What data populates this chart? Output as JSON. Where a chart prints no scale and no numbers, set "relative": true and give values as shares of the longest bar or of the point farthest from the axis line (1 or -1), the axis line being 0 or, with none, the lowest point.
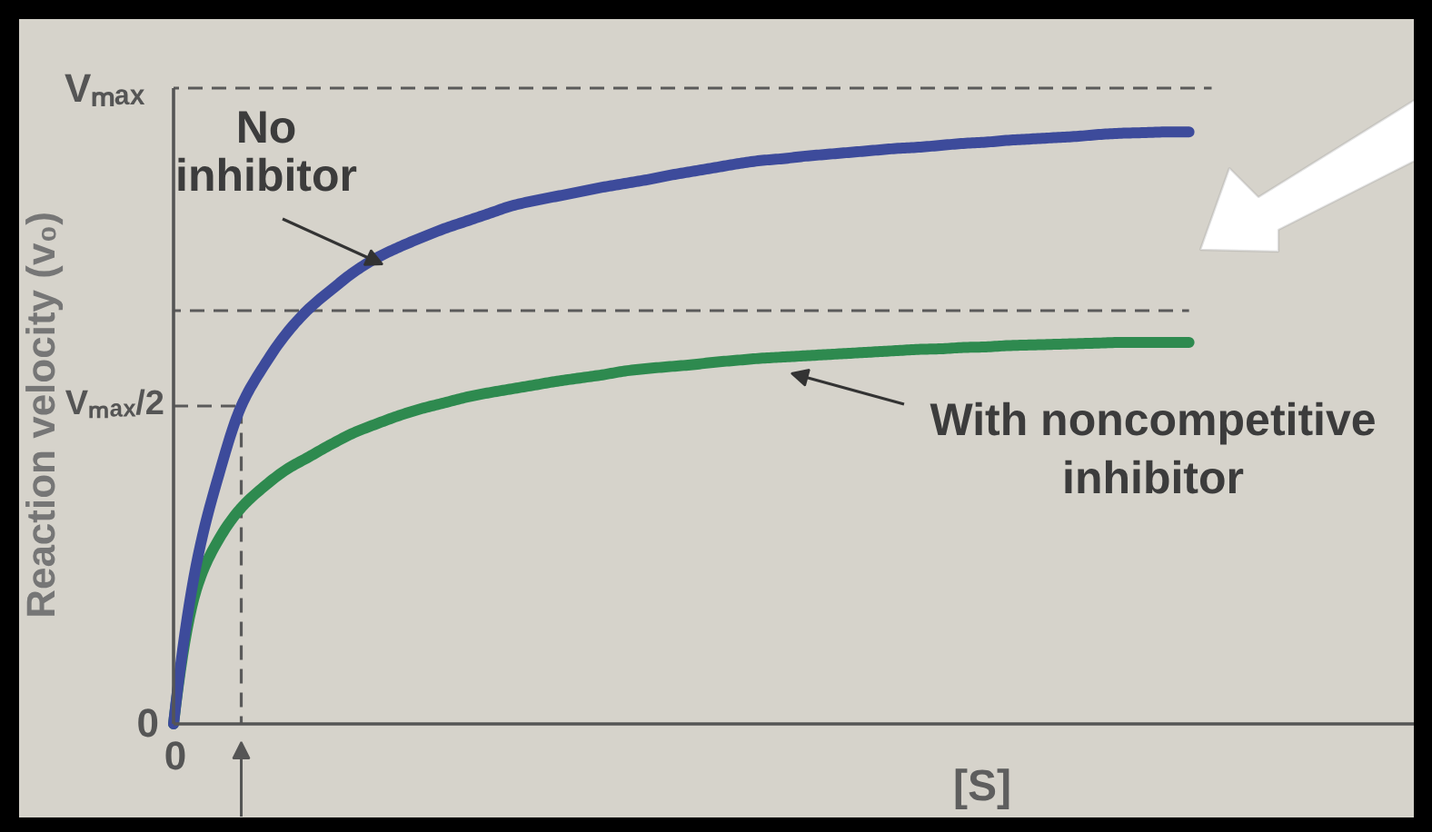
{
  "chart_data": {
    "type": "line",
    "relative": true,
    "ylabel": "Reaction velocity (v₀)",
    "xlabel": "[S]",
    "categories": [
      null,
      null,
      null,
      null,
      null,
      null,
      null,
      null,
      null,
      null,
      null,
      null,
      null,
      null,
      null,
      null,
      null,
      null,
      null,
      null,
      null,
      null,
      null,
      null,
      null,
      null,
      null,
      null,
      null,
      null,
      null,
      null,
      null,
      null,
      null,
      null,
      null,
      null,
      null,
      null,
      null,
      null,
      null,
      null,
      null,
      null,
      null,
      null,
      null,
      null,
      null,
      null,
      null,
      null,
      null,
      null
    ],
    "marker": "none",
    "series": [
      {
        "color": "#5a5a5a",
        "line_style": "dashed",
        "values": [
          1,
          1,
          1,
          1,
          1,
          1,
          1,
          1,
          1,
          1,
          1,
          1,
          1,
          1,
          1,
          1,
          1,
          1,
          1,
          1,
          1,
          1,
          1,
          1,
          1,
          1,
          1,
          1,
          1,
          1,
          1,
          1,
          1,
          1,
          1,
          1,
          1,
          1,
          1,
          1,
          1,
          1,
          1,
          1,
          1,
          1,
          1,
          null,
          null,
          null,
          null,
          null,
          null,
          null,
          null,
          null
        ]
      },
      {
        "color": "#5a5a5a",
        "line_style": "dashed",
        "values": [
          0.65,
          0.65,
          0.65,
          0.65,
          0.65,
          0.65,
          0.65,
          0.65,
          0.65,
          0.65,
          0.65,
          0.65,
          0.65,
          0.65,
          0.65,
          0.65,
          0.65,
          0.65,
          0.65,
          0.65,
          0.65,
          0.65,
          0.65,
          0.65,
          0.65,
          0.65,
          0.65,
          0.65,
          0.65,
          0.65,
          0.65,
          0.65,
          0.65,
          0.65,
          0.65,
          0.65,
          0.65,
          0.65,
          0.65,
          0.65,
          0.65,
          0.65,
          0.65,
          0.65,
          0.65,
          0.65,
          null,
          null,
          null,
          null,
          null,
          null,
          null,
          null,
          null,
          null
        ]
      },
      {
        "type": "step",
        "color": "#5a5a5a",
        "line_style": "dashed",
        "values": [
          0.5,
          0.5,
          0.5,
          0,
          null,
          null,
          null,
          null,
          null,
          null,
          null,
          null,
          null,
          null,
          null,
          null,
          null,
          null,
          null,
          null,
          null,
          null,
          null,
          null,
          null,
          null,
          null,
          null,
          null,
          null,
          null,
          null,
          null,
          null,
          null,
          null,
          null,
          null,
          null,
          null,
          null,
          null,
          null,
          null,
          null,
          null,
          null,
          null,
          null,
          null,
          null,
          null,
          null,
          null,
          null,
          null
        ]
      },
      {
        "color": "#2e8a4f",
        "values": [
          0,
          0.21,
          0.29,
          0.34,
          0.373,
          0.4,
          0.42,
          0.44,
          0.458,
          0.472,
          0.485,
          0.496,
          0.505,
          0.514,
          0.521,
          0.527,
          0.533,
          0.539,
          0.544,
          0.549,
          0.555,
          0.559,
          0.562,
          0.565,
          0.569,
          0.572,
          0.575,
          0.577,
          0.579,
          0.581,
          0.583,
          0.585,
          0.587,
          0.589,
          0.59,
          0.592,
          0.593,
          0.595,
          0.596,
          0.597,
          0.598,
          0.599,
          0.6,
          0.6,
          0.6,
          0.6,
          null,
          null,
          null,
          null,
          null,
          null,
          null,
          null,
          null,
          null
        ]
      },
      {
        "color": "#3d4b9b",
        "values": [
          0,
          0.249,
          0.391,
          0.5,
          0.563,
          0.614,
          0.653,
          0.683,
          0.711,
          0.733,
          0.75,
          0.765,
          0.779,
          0.791,
          0.803,
          0.815,
          0.823,
          0.83,
          0.837,
          0.844,
          0.85,
          0.856,
          0.863,
          0.869,
          0.875,
          0.881,
          0.886,
          0.889,
          0.893,
          0.896,
          0.899,
          0.902,
          0.905,
          0.907,
          0.91,
          0.913,
          0.915,
          0.918,
          0.92,
          0.922,
          0.924,
          0.927,
          0.929,
          0.93,
          0.931,
          0.931,
          null,
          null,
          null,
          null,
          null,
          null,
          null,
          null,
          null,
          null
        ]
      }
    ],
    "annotations": [
      "Vₘₐₓ",
      "Vₘₐₓ/2",
      "0",
      "0",
      "No\ninhibitor",
      "With noncompetitive\ninhibitor"
    ]
  }
}
